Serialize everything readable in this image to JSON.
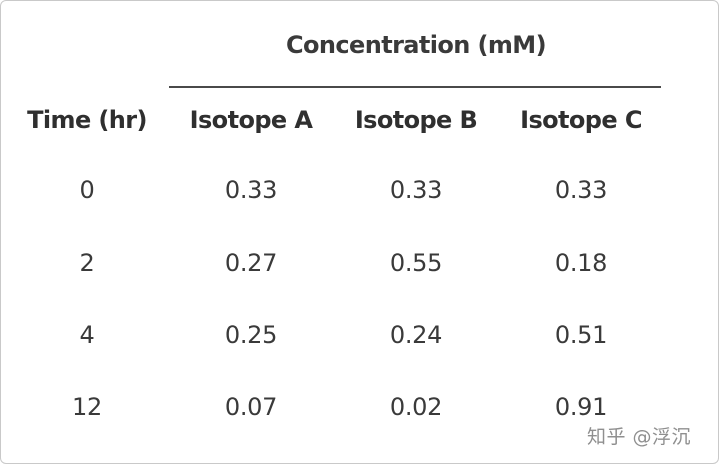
{
  "table": {
    "group_header": "Concentration (mM)",
    "columns": [
      "Time (hr)",
      "Isotope A",
      "Isotope B",
      "Isotope C"
    ],
    "rows": [
      [
        "0",
        "0.33",
        "0.33",
        "0.33"
      ],
      [
        "2",
        "0.27",
        "0.55",
        "0.18"
      ],
      [
        "4",
        "0.25",
        "0.24",
        "0.51"
      ],
      [
        "12",
        "0.07",
        "0.02",
        "0.91"
      ]
    ]
  },
  "watermark": "知乎 @浮沉"
}
